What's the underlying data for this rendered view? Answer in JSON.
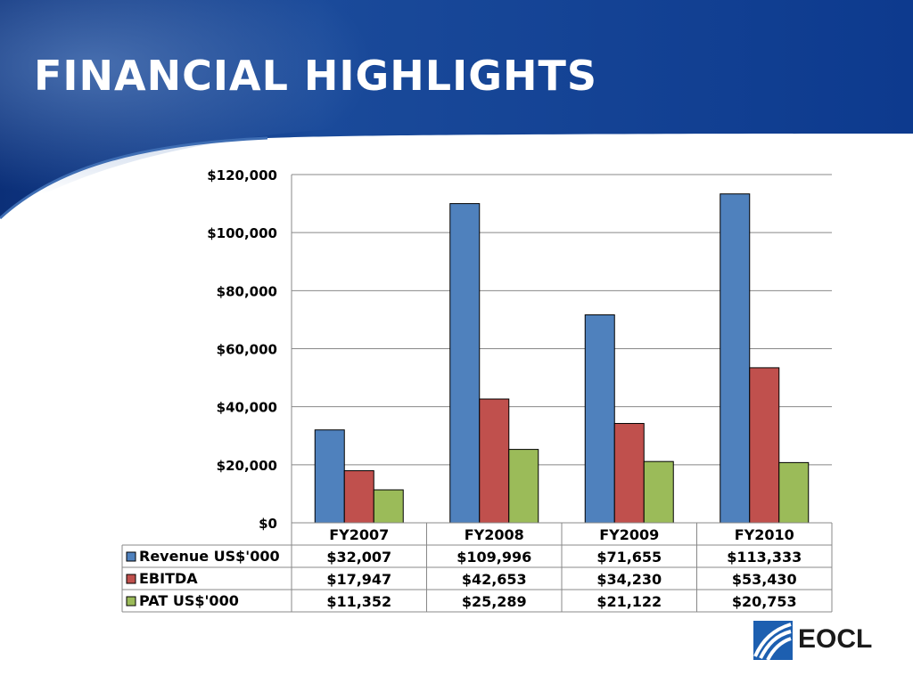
{
  "slide": {
    "title": "FINANCIAL HIGHLIGHTS"
  },
  "logo": {
    "text": "EOCL"
  },
  "colors": {
    "header_blue": "#0b3a8c",
    "revenue": "#4f81bd",
    "ebitda": "#c0504d",
    "pat": "#9bbb59"
  },
  "chart_data": {
    "type": "bar",
    "categories": [
      "FY2007",
      "FY2008",
      "FY2009",
      "FY2010"
    ],
    "ylim": [
      0,
      120000
    ],
    "yticks": [
      0,
      20000,
      40000,
      60000,
      80000,
      100000,
      120000
    ],
    "ytick_labels": [
      "$0",
      "$20,000",
      "$40,000",
      "$60,000",
      "$80,000",
      "$100,000",
      "$120,000"
    ],
    "grid": true,
    "legend": "data-table",
    "series": [
      {
        "name": "Revenue US$'000",
        "color": "#4f81bd",
        "values": [
          32007,
          109996,
          71655,
          113333
        ],
        "labels": [
          "$32,007",
          "$109,996",
          "$71,655",
          "$113,333"
        ]
      },
      {
        "name": "EBITDA",
        "color": "#c0504d",
        "values": [
          17947,
          42653,
          34230,
          53430
        ],
        "labels": [
          "$17,947",
          "$42,653",
          "$34,230",
          "$53,430"
        ]
      },
      {
        "name": "PAT US$'000",
        "color": "#9bbb59",
        "values": [
          11352,
          25289,
          21122,
          20753
        ],
        "labels": [
          "$11,352",
          "$25,289",
          "$21,122",
          "$20,753"
        ]
      }
    ]
  }
}
